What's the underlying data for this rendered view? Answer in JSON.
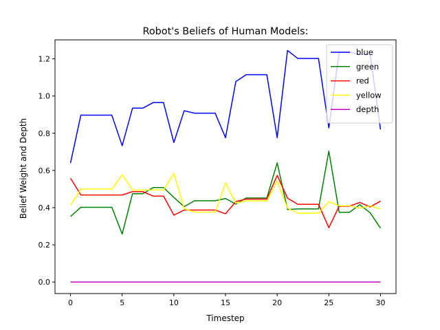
{
  "chart_data": {
    "type": "line",
    "title": "Robot's Beliefs of Human Models:",
    "xlabel": "Timestep",
    "ylabel": "Belief Weight and Depth",
    "xlim": [
      -1.5,
      31.5
    ],
    "ylim": [
      -0.062,
      1.302
    ],
    "xticks": [
      0,
      5,
      10,
      15,
      20,
      25,
      30
    ],
    "yticks": [
      0.0,
      0.2,
      0.4,
      0.6,
      0.8,
      1.0,
      1.2
    ],
    "ytick_labels": [
      "0.0",
      "0.2",
      "0.4",
      "0.6",
      "0.8",
      "1.0",
      "1.2"
    ],
    "grid": false,
    "legend_position": "top-right",
    "x": [
      0,
      1,
      2,
      3,
      4,
      5,
      6,
      7,
      8,
      9,
      10,
      11,
      12,
      13,
      14,
      15,
      16,
      17,
      18,
      19,
      20,
      21,
      22,
      23,
      24,
      25,
      26,
      27,
      28,
      29,
      30
    ],
    "series": [
      {
        "name": "blue",
        "color": "#0000ff",
        "values": [
          0.64,
          0.897,
          0.897,
          0.897,
          0.897,
          0.733,
          0.935,
          0.935,
          0.965,
          0.965,
          0.75,
          0.921,
          0.908,
          0.908,
          0.908,
          0.776,
          1.078,
          1.115,
          1.115,
          1.115,
          0.776,
          1.245,
          1.202,
          1.202,
          1.202,
          0.829,
          1.235,
          1.235,
          1.224,
          1.224,
          0.82
        ]
      },
      {
        "name": "green",
        "color": "#008000",
        "values": [
          0.352,
          0.402,
          0.402,
          0.402,
          0.402,
          0.258,
          0.475,
          0.475,
          0.508,
          0.508,
          0.455,
          0.405,
          0.437,
          0.437,
          0.437,
          0.449,
          0.419,
          0.452,
          0.452,
          0.452,
          0.641,
          0.39,
          0.393,
          0.393,
          0.393,
          0.704,
          0.375,
          0.375,
          0.416,
          0.372,
          0.29
        ]
      },
      {
        "name": "red",
        "color": "#ff0000",
        "values": [
          0.558,
          0.468,
          0.468,
          0.468,
          0.468,
          0.468,
          0.486,
          0.486,
          0.462,
          0.462,
          0.36,
          0.387,
          0.387,
          0.387,
          0.387,
          0.367,
          0.433,
          0.446,
          0.446,
          0.446,
          0.573,
          0.451,
          0.418,
          0.418,
          0.418,
          0.292,
          0.408,
          0.408,
          0.428,
          0.404,
          0.435
        ]
      },
      {
        "name": "yellow",
        "color": "#ffff00",
        "values": [
          0.413,
          0.5,
          0.5,
          0.5,
          0.5,
          0.577,
          0.495,
          0.495,
          0.495,
          0.495,
          0.584,
          0.394,
          0.376,
          0.376,
          0.376,
          0.533,
          0.424,
          0.436,
          0.436,
          0.436,
          0.543,
          0.397,
          0.37,
          0.37,
          0.37,
          0.432,
          0.41,
          0.41,
          0.397,
          0.41,
          0.392
        ]
      },
      {
        "name": "depth",
        "color": "#bf00bf",
        "values": [
          0,
          0,
          0,
          0,
          0,
          0,
          0,
          0,
          0,
          0,
          0,
          0,
          0,
          0,
          0,
          0,
          0,
          0,
          0,
          0,
          0,
          0,
          0,
          0,
          0,
          0,
          0,
          0,
          0,
          0,
          0
        ]
      }
    ]
  }
}
